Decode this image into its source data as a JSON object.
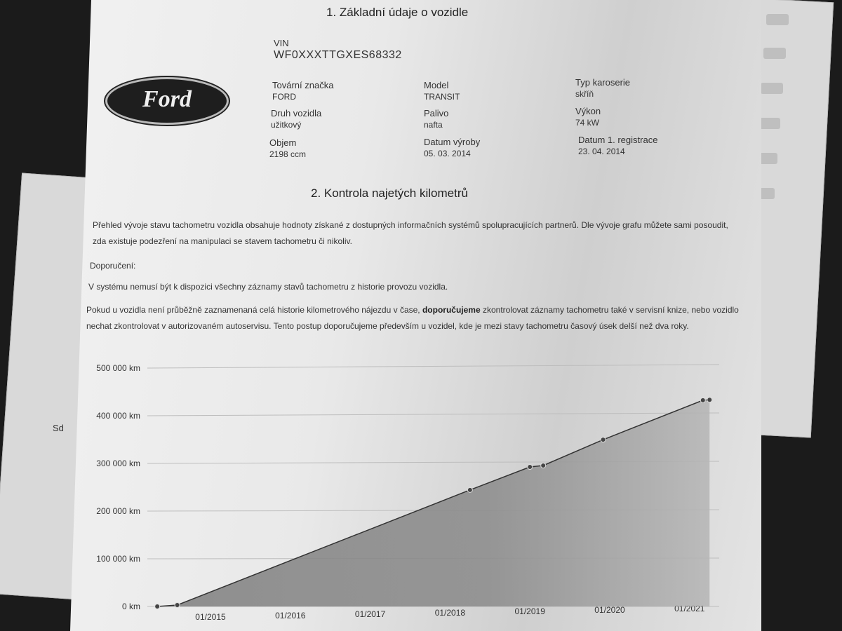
{
  "section1": {
    "title": "1. Základní údaje o vozidle",
    "vin_label": "VIN",
    "vin": "WF0XXXTTGXES68332",
    "logo_text": "Ford",
    "fields": [
      {
        "label": "Tovární značka",
        "value": "FORD"
      },
      {
        "label": "Model",
        "value": "TRANSIT"
      },
      {
        "label": "Typ karoserie",
        "value": "skříň"
      },
      {
        "label": "Druh vozidla",
        "value": "užitkový"
      },
      {
        "label": "Palivo",
        "value": "nafta"
      },
      {
        "label": "Výkon",
        "value": "74 kW"
      },
      {
        "label": "Objem",
        "value": "2198 ccm"
      },
      {
        "label": "Datum výroby",
        "value": "05. 03. 2014"
      },
      {
        "label": "Datum 1. registrace",
        "value": "23. 04. 2014"
      }
    ]
  },
  "section2": {
    "title": "2. Kontrola najetých kilometrů",
    "intro": "Přehled vývoje stavu tachometru vozidla obsahuje hodnoty získané z dostupných informačních systémů spolupracujících partnerů. Dle vývoje grafu můžete sami posoudit, zda existuje podezření na manipulaci se stavem tachometru či nikoliv.",
    "recommend_heading": "Doporučení:",
    "note1": "V systému nemusí být k dispozici všechny záznamy stavů tachometru z historie provozu vozidla.",
    "note2_a": "Pokud u vozidla není průběžně zaznamenaná celá historie kilometrového nájezdu v čase, ",
    "note2_bold": "doporučujeme",
    "note2_b": " zkontrolovat záznamy tachometru také v servisní knize, nebo vozidlo nechat zkontrolovat v autorizovaném autoservisu. Tento postup doporučujeme především u vozidel, kde je mezi stavy tachometru časový úsek delší než dva roky."
  },
  "background_text": {
    "side_label": "Sd"
  },
  "chart_data": {
    "type": "area",
    "title": "",
    "xlabel": "",
    "ylabel": "",
    "ylim": [
      0,
      500000
    ],
    "y_ticks": [
      "0 km",
      "100 000 km",
      "200 000 km",
      "300 000 km",
      "400 000 km",
      "500 000 km"
    ],
    "x_ticks": [
      "01/2015",
      "01/2016",
      "01/2017",
      "01/2018",
      "01/2019",
      "01/2020",
      "01/2021"
    ],
    "grid": true,
    "points": [
      {
        "x": "2014-05",
        "y": 0
      },
      {
        "x": "2014-08",
        "y": 3000
      },
      {
        "x": "2018-04",
        "y": 248000
      },
      {
        "x": "2019-01",
        "y": 297000
      },
      {
        "x": "2019-03",
        "y": 300000
      },
      {
        "x": "2019-12",
        "y": 355000
      },
      {
        "x": "2021-03",
        "y": 439000
      },
      {
        "x": "2021-04",
        "y": 440000
      }
    ],
    "colors": {
      "line": "#333333",
      "fill": "#9a9a9a",
      "marker": "#444444"
    }
  }
}
